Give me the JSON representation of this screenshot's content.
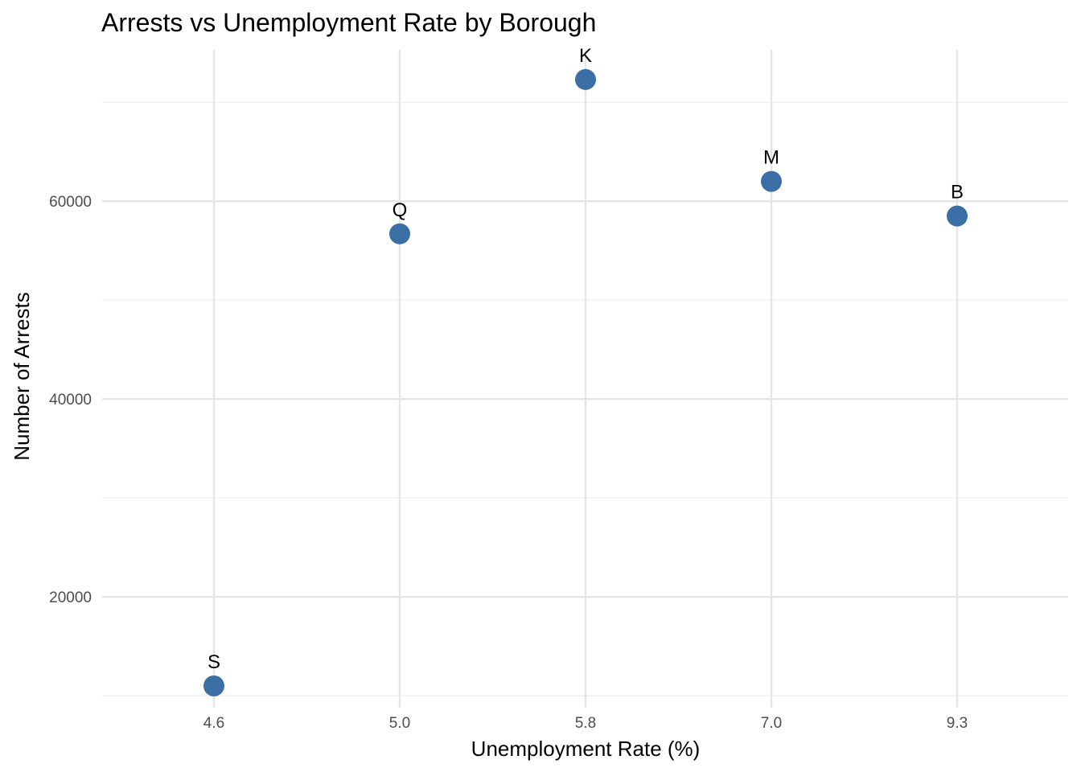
{
  "chart_data": {
    "type": "scatter",
    "title": "Arrests vs Unemployment Rate by Borough",
    "xlabel": "Unemployment Rate (%)",
    "ylabel": "Number of Arrests",
    "x_scale": "categorical",
    "categories": [
      "4.6",
      "5.0",
      "5.8",
      "7.0",
      "9.3"
    ],
    "ylim": [
      8800,
      75300
    ],
    "y_ticks": [
      20000,
      40000,
      60000
    ],
    "y_minor_ticks": [
      10000,
      30000,
      50000,
      70000
    ],
    "grid": true,
    "legend": "none",
    "point_color": "#3a6ea5",
    "points": [
      {
        "x": "4.6",
        "y": 11000,
        "label": "S"
      },
      {
        "x": "5.0",
        "y": 56700,
        "label": "Q"
      },
      {
        "x": "5.8",
        "y": 72300,
        "label": "K"
      },
      {
        "x": "7.0",
        "y": 62000,
        "label": "M"
      },
      {
        "x": "9.3",
        "y": 58500,
        "label": "B"
      }
    ]
  }
}
